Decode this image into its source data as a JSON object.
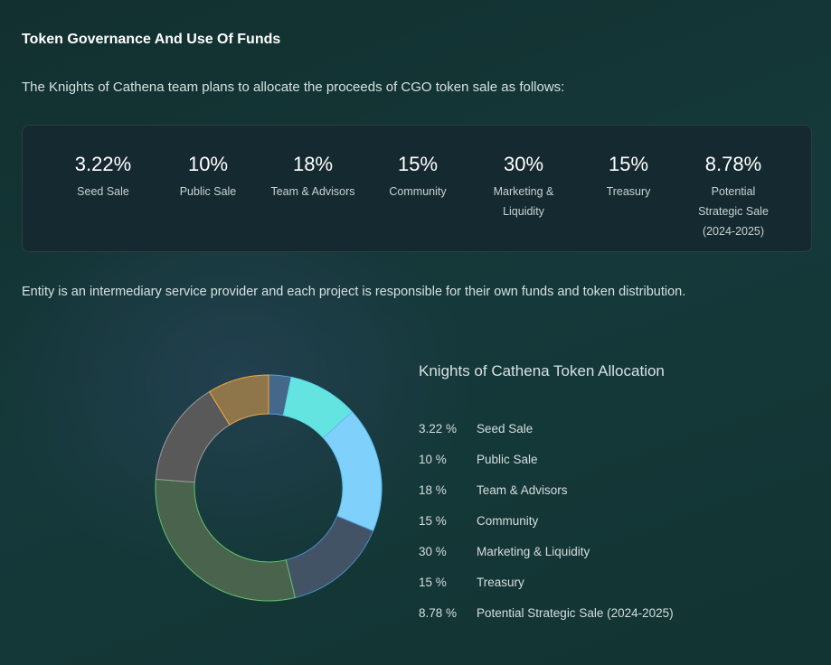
{
  "header": {
    "title": "Token Governance And Use Of Funds",
    "intro": "The Knights of Cathena team plans to allocate the proceeds of CGO token sale as follows:"
  },
  "stats": [
    {
      "value": "3.22%",
      "label": "Seed Sale"
    },
    {
      "value": "10%",
      "label": "Public Sale"
    },
    {
      "value": "18%",
      "label": "Team & Advisors"
    },
    {
      "value": "15%",
      "label": "Community"
    },
    {
      "value": "30%",
      "label": "Marketing & Liquidity"
    },
    {
      "value": "15%",
      "label": "Treasury"
    },
    {
      "value": "8.78%",
      "label": "Potential Strategic Sale (2024-2025)"
    }
  ],
  "note": "Entity is an intermediary service provider and each project is responsible for their own funds and token distribution.",
  "chart_data": {
    "type": "pie",
    "donut": true,
    "title": "Knights of Cathena Token Allocation",
    "legend_placement": "right",
    "slices": [
      {
        "label": "Seed Sale",
        "value": 3.22,
        "display": "3.22 %",
        "fill": "#44678a",
        "stroke": "#4aa3e8"
      },
      {
        "label": "Public Sale",
        "value": 10,
        "display": "10 %",
        "fill": "#64e4e0",
        "stroke": "#5ad8e6"
      },
      {
        "label": "Team & Advisors",
        "value": 18,
        "display": "18 %",
        "fill": "#7fd0fb",
        "stroke": "#5cbef0"
      },
      {
        "label": "Community",
        "value": 15,
        "display": "15 %",
        "fill": "#435366",
        "stroke": "#4a8ec8"
      },
      {
        "label": "Marketing & Liquidity",
        "value": 30,
        "display": "30 %",
        "fill": "#4a634c",
        "stroke": "#5fc46a"
      },
      {
        "label": "Treasury",
        "value": 15,
        "display": "15 %",
        "fill": "#595959",
        "stroke": "#9a9a9a"
      },
      {
        "label": "Potential Strategic Sale (2024-2025)",
        "value": 8.78,
        "display": "8.78 %",
        "fill": "#8f754a",
        "stroke": "#f0a840"
      }
    ]
  }
}
